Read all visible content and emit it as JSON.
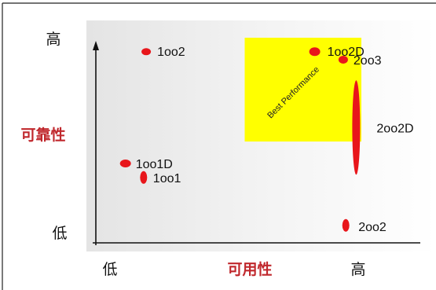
{
  "chart_data": {
    "type": "scatter",
    "y_axis": {
      "title": "可靠性",
      "high_label": "高",
      "low_label": "低"
    },
    "x_axis": {
      "title": "可用性",
      "high_label": "高",
      "low_label": "低"
    },
    "highlight_region": {
      "label": "Best Performance",
      "color": "#ffff00",
      "x_range": [
        0.55,
        1.0
      ],
      "y_range": [
        0.48,
        1.0
      ]
    },
    "points": [
      {
        "label": "1oo2",
        "x": 0.17,
        "y": 0.93
      },
      {
        "label": "1oo2D",
        "x": 0.82,
        "y": 0.93
      },
      {
        "label": "2oo3",
        "x": 0.93,
        "y": 0.89
      },
      {
        "label": "2oo2D",
        "x": 0.98,
        "y": 0.55
      },
      {
        "label": "1oo1D",
        "x": 0.09,
        "y": 0.37
      },
      {
        "label": "1oo1",
        "x": 0.16,
        "y": 0.3
      },
      {
        "label": "2oo2",
        "x": 0.94,
        "y": 0.06
      }
    ],
    "colors": {
      "points": "#e8161b",
      "axis_title": "#c0282d",
      "axis_line": "#111111"
    }
  }
}
